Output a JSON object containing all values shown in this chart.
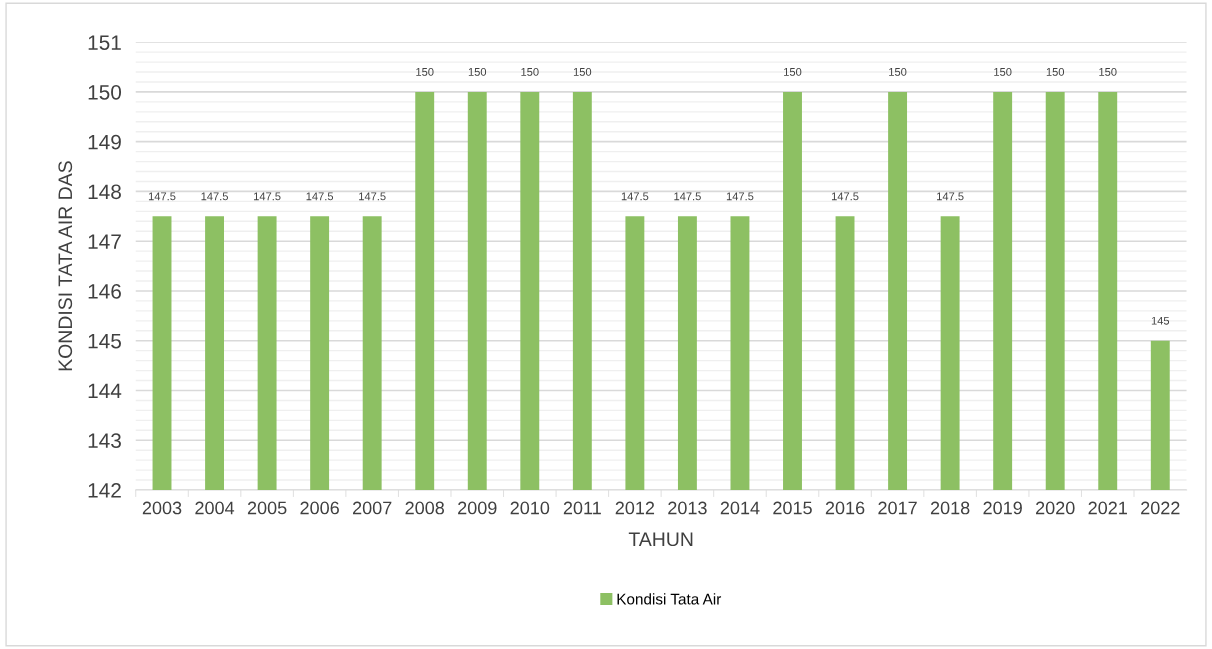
{
  "chart_data": {
    "type": "bar",
    "xlabel": "TAHUN",
    "ylabel": "KONDISI TATA AIR DAS",
    "categories": [
      "2003",
      "2004",
      "2005",
      "2006",
      "2007",
      "2008",
      "2009",
      "2010",
      "2011",
      "2012",
      "2013",
      "2014",
      "2015",
      "2016",
      "2017",
      "2018",
      "2019",
      "2020",
      "2021",
      "2022"
    ],
    "series": [
      {
        "name": "Kondisi Tata Air",
        "color": "#8dc063",
        "values": [
          147.5,
          147.5,
          147.5,
          147.5,
          147.5,
          150,
          150,
          150,
          150,
          147.5,
          147.5,
          147.5,
          150,
          147.5,
          150,
          147.5,
          150,
          150,
          150,
          145
        ]
      }
    ],
    "ylim": [
      142,
      151
    ],
    "yticks": [
      142,
      143,
      144,
      145,
      146,
      147,
      148,
      149,
      150,
      151
    ],
    "grid": "y",
    "legend": "bottom",
    "data_labels": true
  }
}
